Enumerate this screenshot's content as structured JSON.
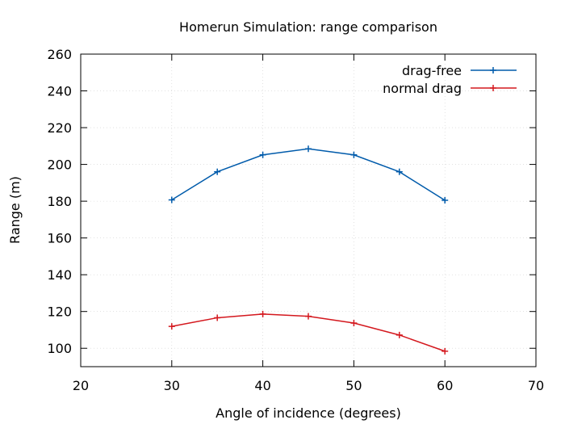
{
  "chart_data": {
    "type": "line",
    "title": "Homerun Simulation: range comparison",
    "xlabel": "Angle of incidence (degrees)",
    "ylabel": "Range (m)",
    "xlim": [
      20,
      70
    ],
    "ylim": [
      90,
      260
    ],
    "xticks": [
      20,
      30,
      40,
      50,
      60,
      70
    ],
    "yticks": [
      100,
      120,
      140,
      160,
      180,
      200,
      220,
      240,
      260
    ],
    "grid": true,
    "legend_position": "top-right",
    "x": [
      30,
      35,
      40,
      45,
      50,
      55,
      60
    ],
    "series": [
      {
        "name": "drag-free",
        "color": "#005bab",
        "marker": "plus",
        "values": [
          180.7,
          196.0,
          205.2,
          208.5,
          205.2,
          196.0,
          180.5
        ]
      },
      {
        "name": "normal drag",
        "color": "#d4181e",
        "marker": "plus",
        "values": [
          111.9,
          116.6,
          118.6,
          117.4,
          113.7,
          107.2,
          98.4
        ]
      }
    ]
  }
}
